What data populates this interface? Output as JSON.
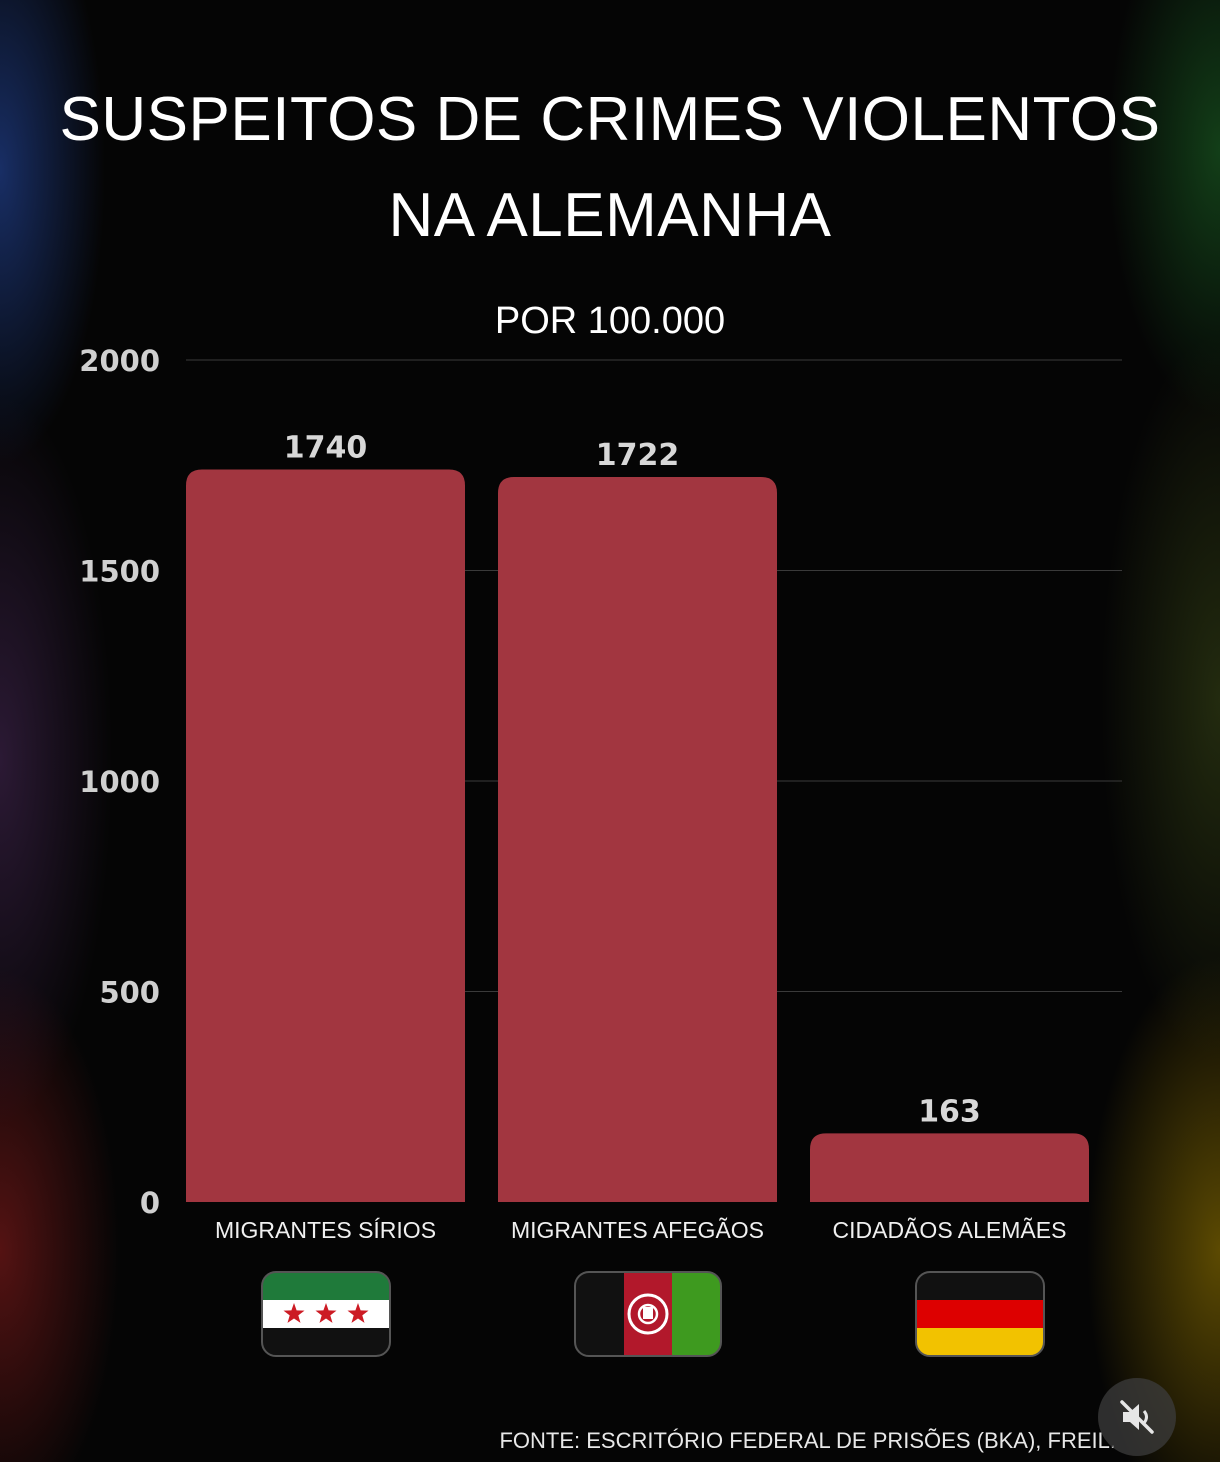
{
  "chart_data": {
    "type": "bar",
    "title": [
      "SUSPEITOS DE CRIMES VIOLENTOS",
      "NA ALEMANHA"
    ],
    "subtitle": "POR 100.000",
    "categories": [
      "MIGRANTES SÍRIOS",
      "MIGRANTES AFEGÃOS",
      "CIDADÃOS ALEMÃES"
    ],
    "values": [
      1740,
      1722,
      163
    ],
    "value_labels": [
      "1740",
      "1722",
      "163"
    ],
    "ylim": [
      0,
      2000
    ],
    "yticks": [
      "0",
      "500",
      "1000",
      "1500",
      "2000"
    ],
    "grid": true,
    "bar_color": "#a23640",
    "flags": [
      "syria-flag-icon",
      "afghanistan-flag-icon",
      "germany-flag-icon"
    ]
  },
  "footer": {
    "source": "FONTE: ESCRITÓRIO FEDERAL DE PRISÕES (BKA), FREIL."
  },
  "controls": {
    "mute_icon": "muted-speaker-icon"
  }
}
